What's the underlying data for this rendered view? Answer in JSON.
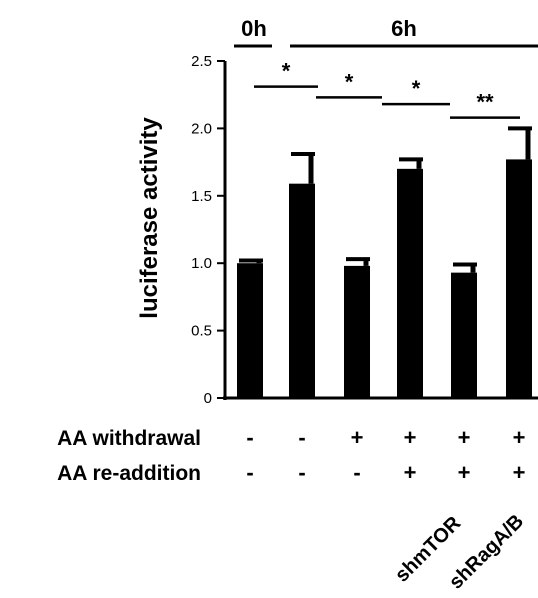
{
  "chart_data": {
    "type": "bar",
    "ylabel": "luciferase activity",
    "ylim": [
      0,
      2.5
    ],
    "yticks": [
      "0",
      "0.5",
      "1.0",
      "1.5",
      "2.0",
      "2.5"
    ],
    "yticks_values": [
      0,
      0.5,
      1.0,
      1.5,
      2.0,
      2.5
    ],
    "bars": [
      {
        "value": 1.0,
        "error": 0.02
      },
      {
        "value": 1.59,
        "error": 0.22
      },
      {
        "value": 0.98,
        "error": 0.05
      },
      {
        "value": 1.7,
        "error": 0.07
      },
      {
        "value": 0.93,
        "error": 0.06
      },
      {
        "value": 1.77,
        "error": 0.23
      }
    ],
    "time_labels": {
      "first": "0h",
      "second": "6h"
    },
    "significance": [
      {
        "label": "*",
        "y": 2.31
      },
      {
        "label": "*",
        "y": 2.23
      },
      {
        "label": "*",
        "y": 2.18
      },
      {
        "label": "**",
        "y": 2.08
      }
    ],
    "conditions": [
      {
        "label": "AA withdrawal",
        "values": [
          "-",
          "-",
          "+",
          "+",
          "+",
          "+"
        ]
      },
      {
        "label": "AA re-addition",
        "values": [
          "-",
          "-",
          "-",
          "+",
          "+",
          "+"
        ]
      }
    ],
    "shrna_labels": [
      "shmTOR",
      "shRagA/B"
    ],
    "bar_color": "#000000"
  }
}
